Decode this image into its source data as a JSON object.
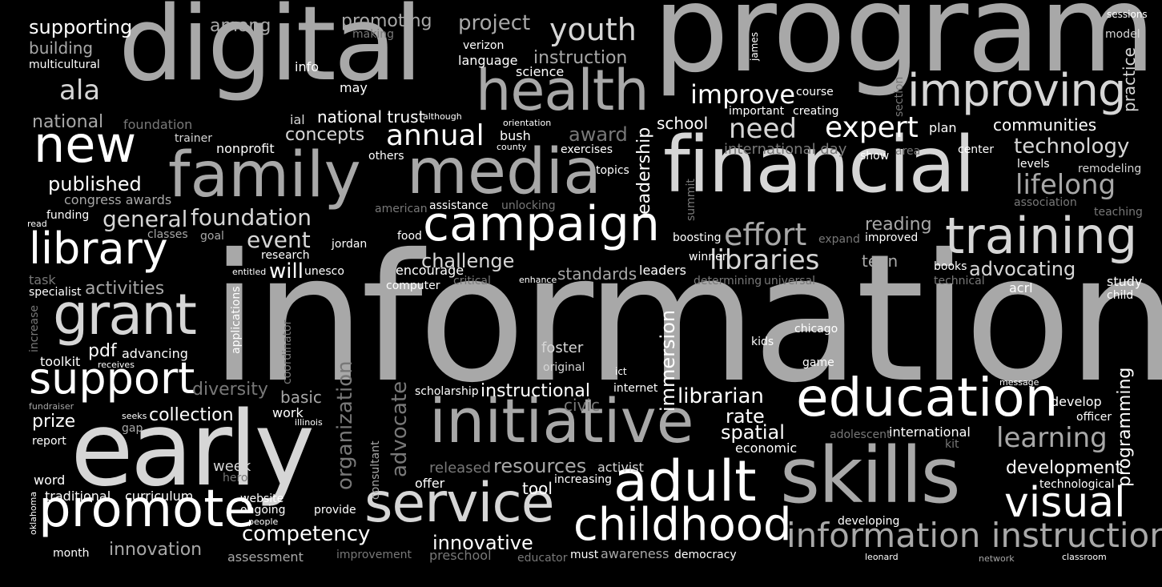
{
  "palette": {
    "background": "#000000",
    "white": "#ffffff",
    "light_gray": "#d6d6d6",
    "mid_gray": "#a8a8a8",
    "dark_gray": "#787878"
  },
  "words": [
    {
      "id": "information",
      "text": "information"
    },
    {
      "id": "program",
      "text": "program"
    },
    {
      "id": "digital",
      "text": "digital"
    },
    {
      "id": "financial",
      "text": "financial"
    },
    {
      "id": "early",
      "text": "early"
    },
    {
      "id": "skills",
      "text": "skills"
    },
    {
      "id": "family",
      "text": "family"
    },
    {
      "id": "media",
      "text": "media"
    },
    {
      "id": "health",
      "text": "health"
    },
    {
      "id": "initiative",
      "text": "initiative"
    },
    {
      "id": "campaign",
      "text": "campaign"
    },
    {
      "id": "service",
      "text": "service"
    },
    {
      "id": "training",
      "text": "training"
    },
    {
      "id": "improving",
      "text": "improving"
    },
    {
      "id": "grant",
      "text": "grant"
    },
    {
      "id": "library",
      "text": "library"
    },
    {
      "id": "new",
      "text": "new"
    },
    {
      "id": "support",
      "text": "support"
    },
    {
      "id": "promote",
      "text": "promote"
    },
    {
      "id": "education",
      "text": "education"
    },
    {
      "id": "adult",
      "text": "adult"
    },
    {
      "id": "childhood",
      "text": "childhood"
    },
    {
      "id": "visual",
      "text": "visual"
    },
    {
      "id": "information_instruction",
      "text": "information instruction"
    },
    {
      "id": "youth",
      "text": "youth"
    },
    {
      "id": "expert",
      "text": "expert"
    },
    {
      "id": "effort",
      "text": "effort"
    },
    {
      "id": "libraries",
      "text": "libraries"
    },
    {
      "id": "annual",
      "text": "annual"
    },
    {
      "id": "improve",
      "text": "improve"
    },
    {
      "id": "need",
      "text": "need"
    },
    {
      "id": "technology",
      "text": "technology"
    },
    {
      "id": "lifelong",
      "text": "lifelong"
    },
    {
      "id": "learning",
      "text": "learning"
    },
    {
      "id": "foundation2",
      "text": "foundation"
    },
    {
      "id": "general",
      "text": "general"
    },
    {
      "id": "challenge",
      "text": "challenge"
    },
    {
      "id": "event",
      "text": "event"
    },
    {
      "id": "will",
      "text": "will"
    },
    {
      "id": "competency",
      "text": "competency"
    },
    {
      "id": "innovative",
      "text": "innovative"
    },
    {
      "id": "instructional",
      "text": "instructional"
    },
    {
      "id": "librarian",
      "text": "librarian"
    },
    {
      "id": "rate",
      "text": "rate"
    },
    {
      "id": "spatial",
      "text": "spatial"
    },
    {
      "id": "resources",
      "text": "resources"
    },
    {
      "id": "development",
      "text": "development"
    },
    {
      "id": "advocating",
      "text": "advocating"
    },
    {
      "id": "reading",
      "text": "reading"
    },
    {
      "id": "communities",
      "text": "communities"
    },
    {
      "id": "published",
      "text": "published"
    },
    {
      "id": "ala",
      "text": "ala"
    },
    {
      "id": "supporting",
      "text": "supporting"
    },
    {
      "id": "building",
      "text": "building"
    },
    {
      "id": "multicultural",
      "text": "multicultural"
    },
    {
      "id": "national",
      "text": "national"
    },
    {
      "id": "among",
      "text": "among"
    },
    {
      "id": "promoting",
      "text": "promoting"
    },
    {
      "id": "making",
      "text": "making"
    },
    {
      "id": "project",
      "text": "project"
    },
    {
      "id": "verizon",
      "text": "verizon"
    },
    {
      "id": "language",
      "text": "language"
    },
    {
      "id": "instruction",
      "text": "instruction"
    },
    {
      "id": "science",
      "text": "science"
    },
    {
      "id": "sessions",
      "text": "sessions"
    },
    {
      "id": "model",
      "text": "model"
    },
    {
      "id": "practice",
      "text": "practice"
    },
    {
      "id": "info",
      "text": "info"
    },
    {
      "id": "may",
      "text": "may"
    },
    {
      "id": "foundation1",
      "text": "foundation"
    },
    {
      "id": "trainer",
      "text": "trainer"
    },
    {
      "id": "nonprofit",
      "text": "nonprofit"
    },
    {
      "id": "ial",
      "text": "ial"
    },
    {
      "id": "national_trust",
      "text": "national trust"
    },
    {
      "id": "although",
      "text": "although"
    },
    {
      "id": "concepts",
      "text": "concepts"
    },
    {
      "id": "orientation",
      "text": "orientation"
    },
    {
      "id": "bush",
      "text": "bush"
    },
    {
      "id": "county",
      "text": "county"
    },
    {
      "id": "others",
      "text": "others"
    },
    {
      "id": "award",
      "text": "award"
    },
    {
      "id": "exercises",
      "text": "exercises"
    },
    {
      "id": "school",
      "text": "school"
    },
    {
      "id": "course",
      "text": "course"
    },
    {
      "id": "important",
      "text": "important"
    },
    {
      "id": "creating",
      "text": "creating"
    },
    {
      "id": "international_day",
      "text": "international day"
    },
    {
      "id": "show",
      "text": "show"
    },
    {
      "id": "area",
      "text": "area"
    },
    {
      "id": "center",
      "text": "center"
    },
    {
      "id": "plan",
      "text": "plan"
    },
    {
      "id": "levels",
      "text": "levels"
    },
    {
      "id": "remodeling",
      "text": "remodeling"
    },
    {
      "id": "association",
      "text": "association"
    },
    {
      "id": "teaching",
      "text": "teaching"
    },
    {
      "id": "topics",
      "text": "topics"
    },
    {
      "id": "congress_awards",
      "text": "congress awards"
    },
    {
      "id": "funding",
      "text": "funding"
    },
    {
      "id": "read",
      "text": "read"
    },
    {
      "id": "classes",
      "text": "classes"
    },
    {
      "id": "goal",
      "text": "goal"
    },
    {
      "id": "american",
      "text": "american"
    },
    {
      "id": "assistance",
      "text": "assistance"
    },
    {
      "id": "unlocking",
      "text": "unlocking"
    },
    {
      "id": "food",
      "text": "food"
    },
    {
      "id": "jordan",
      "text": "jordan"
    },
    {
      "id": "research",
      "text": "research"
    },
    {
      "id": "entitled",
      "text": "entitled"
    },
    {
      "id": "unesco",
      "text": "unesco"
    },
    {
      "id": "encourage",
      "text": "encourage"
    },
    {
      "id": "critical",
      "text": "critical"
    },
    {
      "id": "computer",
      "text": "computer"
    },
    {
      "id": "enhance",
      "text": "enhance"
    },
    {
      "id": "standards",
      "text": "standards"
    },
    {
      "id": "leaders",
      "text": "leaders"
    },
    {
      "id": "boosting",
      "text": "boosting"
    },
    {
      "id": "winner",
      "text": "winner"
    },
    {
      "id": "determining",
      "text": "determining"
    },
    {
      "id": "universal",
      "text": "universal"
    },
    {
      "id": "expand",
      "text": "expand"
    },
    {
      "id": "improved",
      "text": "improved"
    },
    {
      "id": "teen",
      "text": "teen"
    },
    {
      "id": "books",
      "text": "books"
    },
    {
      "id": "technical",
      "text": "technical"
    },
    {
      "id": "acrl",
      "text": "acrl"
    },
    {
      "id": "study",
      "text": "study"
    },
    {
      "id": "child",
      "text": "child"
    },
    {
      "id": "task",
      "text": "task"
    },
    {
      "id": "specialist",
      "text": "specialist"
    },
    {
      "id": "activities",
      "text": "activities"
    },
    {
      "id": "pdf",
      "text": "pdf"
    },
    {
      "id": "advancing",
      "text": "advancing"
    },
    {
      "id": "toolkit",
      "text": "toolkit"
    },
    {
      "id": "receives",
      "text": "receives"
    },
    {
      "id": "diversity",
      "text": "diversity"
    },
    {
      "id": "basic",
      "text": "basic"
    },
    {
      "id": "fundraiser",
      "text": "fundraiser"
    },
    {
      "id": "prize",
      "text": "prize"
    },
    {
      "id": "seeks",
      "text": "seeks"
    },
    {
      "id": "gap",
      "text": "gap"
    },
    {
      "id": "collection",
      "text": "collection"
    },
    {
      "id": "report",
      "text": "report"
    },
    {
      "id": "work",
      "text": "work"
    },
    {
      "id": "illinois",
      "text": "illinois"
    },
    {
      "id": "foster",
      "text": "foster"
    },
    {
      "id": "original",
      "text": "original"
    },
    {
      "id": "ict",
      "text": "ict"
    },
    {
      "id": "internet",
      "text": "internet"
    },
    {
      "id": "civic",
      "text": "civic"
    },
    {
      "id": "scholarship",
      "text": "scholarship"
    },
    {
      "id": "kids",
      "text": "kids"
    },
    {
      "id": "chicago",
      "text": "chicago"
    },
    {
      "id": "game",
      "text": "game"
    },
    {
      "id": "message",
      "text": "message"
    },
    {
      "id": "develop",
      "text": "develop"
    },
    {
      "id": "officer",
      "text": "officer"
    },
    {
      "id": "adolescent",
      "text": "adolescent"
    },
    {
      "id": "international",
      "text": "international"
    },
    {
      "id": "kit",
      "text": "kit"
    },
    {
      "id": "economic",
      "text": "economic"
    },
    {
      "id": "word",
      "text": "word"
    },
    {
      "id": "week",
      "text": "week"
    },
    {
      "id": "hero",
      "text": "hero"
    },
    {
      "id": "traditional",
      "text": "traditional"
    },
    {
      "id": "curriculum",
      "text": "curriculum"
    },
    {
      "id": "website",
      "text": "website"
    },
    {
      "id": "ongoing",
      "text": "ongoing"
    },
    {
      "id": "people",
      "text": "people"
    },
    {
      "id": "provide",
      "text": "provide"
    },
    {
      "id": "released",
      "text": "released"
    },
    {
      "id": "activist",
      "text": "activist"
    },
    {
      "id": "offer",
      "text": "offer"
    },
    {
      "id": "tool",
      "text": "tool"
    },
    {
      "id": "increasing",
      "text": "increasing"
    },
    {
      "id": "technological",
      "text": "technological"
    },
    {
      "id": "developing",
      "text": "developing"
    },
    {
      "id": "month",
      "text": "month"
    },
    {
      "id": "innovation",
      "text": "innovation"
    },
    {
      "id": "assessment",
      "text": "assessment"
    },
    {
      "id": "improvement",
      "text": "improvement"
    },
    {
      "id": "preschool",
      "text": "preschool"
    },
    {
      "id": "educator",
      "text": "educator"
    },
    {
      "id": "must",
      "text": "must"
    },
    {
      "id": "awareness",
      "text": "awareness"
    },
    {
      "id": "democracy",
      "text": "democracy"
    },
    {
      "id": "leonard",
      "text": "leonard"
    },
    {
      "id": "network",
      "text": "network"
    },
    {
      "id": "classroom",
      "text": "classroom"
    },
    {
      "id": "leadership",
      "text": "leadership"
    },
    {
      "id": "summit",
      "text": "summit"
    },
    {
      "id": "james",
      "text": "james"
    },
    {
      "id": "section",
      "text": "section"
    },
    {
      "id": "applications",
      "text": "applications"
    },
    {
      "id": "coordinator",
      "text": "coordinator"
    },
    {
      "id": "increase",
      "text": "increase"
    },
    {
      "id": "immersion",
      "text": "immersion"
    },
    {
      "id": "organization",
      "text": "organization"
    },
    {
      "id": "advocate",
      "text": "advocate"
    },
    {
      "id": "consultant",
      "text": "consultant"
    },
    {
      "id": "programming",
      "text": "programming"
    },
    {
      "id": "oklahoma",
      "text": "oklahoma"
    }
  ]
}
